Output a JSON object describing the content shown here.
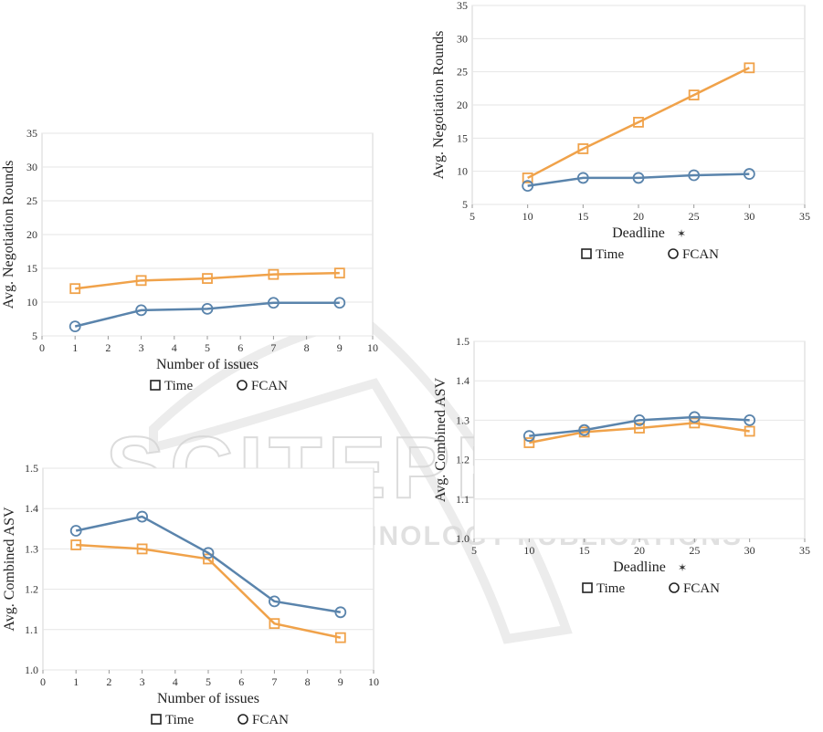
{
  "watermark": {
    "title": "SCITEPRESS",
    "subtitle": "SCIENCE AND TECHNOLOGY PUBLICATIONS"
  },
  "colors": {
    "time": "#F0A24A",
    "fcan": "#5A84AC",
    "grid": "#E6E6E6",
    "frame": "#D6D6D6",
    "watermark": "#D4D4D4"
  },
  "chart_data": [
    {
      "id": "rounds-vs-issues",
      "type": "line",
      "title": "",
      "xlabel": "Number of issues",
      "ylabel": "Avg. Negotiation Rounds",
      "xlim": [
        0,
        10
      ],
      "ylim": [
        5,
        35
      ],
      "xticks": [
        0,
        1,
        2,
        3,
        4,
        5,
        6,
        7,
        8,
        9,
        10
      ],
      "yticks": [
        5,
        10,
        15,
        20,
        25,
        30,
        35
      ],
      "x": [
        1,
        3,
        5,
        7,
        9
      ],
      "series": [
        {
          "name": "Time",
          "marker": "square",
          "values": [
            12.0,
            13.2,
            13.5,
            14.1,
            14.3
          ]
        },
        {
          "name": "FCAN",
          "marker": "circle",
          "values": [
            6.4,
            8.8,
            9.0,
            9.9,
            9.9
          ]
        }
      ],
      "legend": [
        "Time",
        "FCAN"
      ]
    },
    {
      "id": "asv-vs-issues",
      "type": "line",
      "title": "",
      "xlabel": "Number of issues",
      "ylabel": "Avg. Combined ASV",
      "xlim": [
        0,
        10
      ],
      "ylim": [
        1.0,
        1.5
      ],
      "xticks": [
        0,
        1,
        2,
        3,
        4,
        5,
        6,
        7,
        8,
        9,
        10
      ],
      "yticks": [
        "1.0",
        "1.1",
        "1.2",
        "1.3",
        "1.4",
        "1.5"
      ],
      "x": [
        1,
        3,
        5,
        7,
        9
      ],
      "series": [
        {
          "name": "Time",
          "marker": "square",
          "values": [
            1.31,
            1.3,
            1.275,
            1.115,
            1.08
          ]
        },
        {
          "name": "FCAN",
          "marker": "circle",
          "values": [
            1.345,
            1.38,
            1.29,
            1.17,
            1.143
          ]
        }
      ],
      "legend": [
        "Time",
        "FCAN"
      ]
    },
    {
      "id": "rounds-vs-deadline",
      "type": "line",
      "title": "",
      "xlabel": "Deadline",
      "ylabel": "Avg. Negotiation Rounds",
      "xlim": [
        5,
        35
      ],
      "ylim": [
        5,
        35
      ],
      "xticks": [
        5,
        10,
        15,
        20,
        25,
        30,
        35
      ],
      "yticks": [
        5,
        10,
        15,
        20,
        25,
        30,
        35
      ],
      "x": [
        10,
        15,
        20,
        25,
        30
      ],
      "series": [
        {
          "name": "Time",
          "marker": "square",
          "values": [
            9.0,
            13.4,
            17.4,
            21.5,
            25.6
          ]
        },
        {
          "name": "FCAN",
          "marker": "circle",
          "values": [
            7.8,
            9.0,
            9.0,
            9.4,
            9.6
          ]
        }
      ],
      "legend": [
        "Time",
        "FCAN"
      ]
    },
    {
      "id": "asv-vs-deadline",
      "type": "line",
      "title": "",
      "xlabel": "Deadline",
      "ylabel": "Avg. Combined ASV",
      "xlim": [
        5,
        35
      ],
      "ylim": [
        1.0,
        1.5
      ],
      "xticks": [
        5,
        10,
        15,
        20,
        25,
        30,
        35
      ],
      "yticks": [
        "1.0",
        "1.1",
        "1.2",
        "1.3",
        "1.4",
        "1.5"
      ],
      "x": [
        10,
        15,
        20,
        25,
        30
      ],
      "series": [
        {
          "name": "Time",
          "marker": "square",
          "values": [
            1.243,
            1.27,
            1.28,
            1.293,
            1.272
          ]
        },
        {
          "name": "FCAN",
          "marker": "circle",
          "values": [
            1.26,
            1.275,
            1.3,
            1.308,
            1.3
          ]
        }
      ],
      "legend": [
        "Time",
        "FCAN"
      ]
    }
  ]
}
